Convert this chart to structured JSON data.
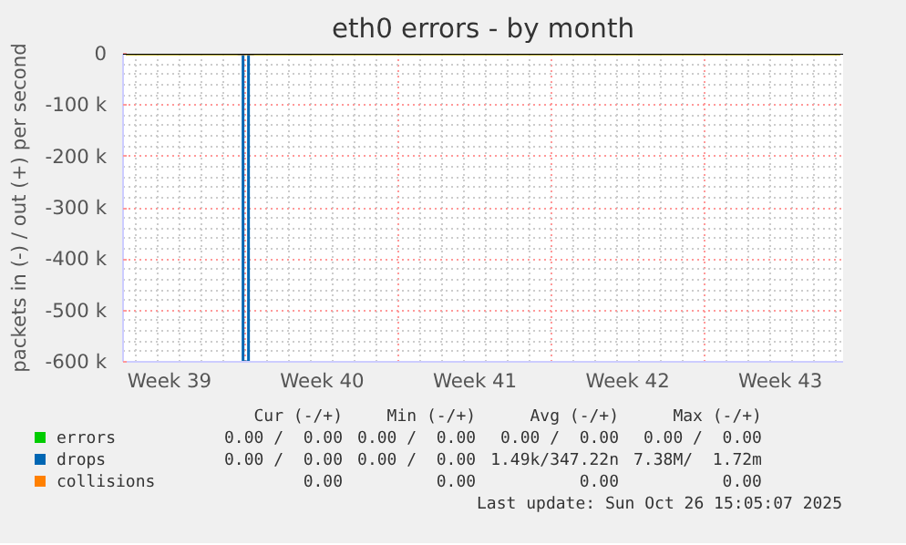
{
  "chart_data": {
    "type": "line",
    "title": "eth0 errors - by month",
    "ylabel": "packets in (-) / out (+) per second",
    "categories": [
      null,
      null,
      null,
      null,
      null,
      null,
      null,
      null,
      "Week 39",
      null,
      null,
      null,
      null,
      null,
      null,
      null,
      null,
      null,
      null,
      null,
      null,
      null,
      null,
      null,
      null,
      null,
      null,
      null,
      null,
      null,
      null,
      null,
      null,
      null,
      null,
      null,
      "Week 40",
      null,
      null,
      null,
      null,
      null,
      null,
      null,
      null,
      null,
      null,
      null,
      null,
      null,
      null,
      null,
      null,
      null,
      null,
      null,
      null,
      null,
      null,
      null,
      null,
      null,
      null,
      null,
      "Week 41",
      null,
      null,
      null,
      null,
      null,
      null,
      null,
      null,
      null,
      null,
      null,
      null,
      null,
      null,
      null,
      null,
      null,
      null,
      null,
      null,
      null,
      null,
      null,
      null,
      null,
      null,
      null,
      "Week 42",
      null,
      null,
      null,
      null,
      null,
      null,
      null,
      null,
      null,
      null,
      null,
      null,
      null,
      null,
      null,
      null,
      null,
      null,
      null,
      null,
      null,
      null,
      null,
      null,
      null,
      null,
      null,
      "Week 43",
      null,
      null,
      null,
      null,
      null,
      null,
      null,
      null,
      null,
      null,
      null
    ],
    "ylim": [
      -600000,
      0
    ],
    "yticks": [
      0,
      {
        "value": -100000,
        "label": "-100 k"
      },
      {
        "value": -200000,
        "label": "-200 k"
      },
      {
        "value": -300000,
        "label": "-300 k"
      },
      {
        "value": -400000,
        "label": "-400 k"
      },
      {
        "value": -500000,
        "label": "-500 k"
      },
      {
        "value": -600000,
        "label": "-600 k"
      }
    ],
    "grid": true,
    "legend": "bottom",
    "series": [
      {
        "name": "errors",
        "color": "#00cc00",
        "values": [
          null,
          null,
          null,
          null,
          null,
          null,
          null,
          null,
          null,
          null,
          null,
          null,
          null,
          null,
          null,
          null,
          null,
          null,
          null,
          null,
          null,
          null,
          null,
          null,
          null,
          null,
          null,
          null,
          null,
          null,
          null,
          null,
          null,
          null,
          null,
          null,
          null,
          null,
          null,
          null,
          null,
          null,
          null,
          null,
          null,
          null,
          null,
          null,
          null,
          null,
          null,
          null,
          null,
          null,
          null,
          null,
          null,
          null,
          null,
          null,
          null,
          null,
          null,
          null,
          null,
          null,
          null,
          null,
          null,
          null,
          null,
          null,
          null,
          null,
          null,
          null,
          null,
          null,
          null,
          null,
          null,
          null,
          null,
          null,
          null,
          null,
          null,
          null,
          null,
          null,
          null,
          null,
          null,
          null,
          null,
          null,
          null,
          null,
          null,
          null,
          null,
          null,
          null,
          null,
          null,
          null,
          null,
          null,
          null,
          null,
          null,
          null,
          null,
          null,
          null,
          null,
          null,
          null,
          null,
          null,
          null,
          null,
          null,
          null,
          null,
          null,
          null,
          null,
          null,
          null,
          null,
          null
        ]
      },
      {
        "name": "drops",
        "color": "#0066b3",
        "type": "step",
        "values": [
          null,
          null,
          null,
          null,
          null,
          null,
          null,
          null,
          null,
          null,
          null,
          null,
          null,
          null,
          null,
          null,
          null,
          null,
          null,
          null,
          null,
          0,
          -600000,
          0,
          null,
          null,
          null,
          null,
          null,
          null,
          null,
          null,
          null,
          null,
          null,
          null,
          null,
          null,
          null,
          null,
          null,
          null,
          null,
          null,
          null,
          null,
          null,
          null,
          null,
          null,
          null,
          null,
          null,
          null,
          null,
          null,
          null,
          null,
          null,
          null,
          null,
          null,
          null,
          null,
          null,
          null,
          null,
          null,
          null,
          null,
          null,
          null,
          null,
          null,
          null,
          null,
          null,
          null,
          null,
          null,
          null,
          null,
          null,
          null,
          null,
          null,
          null,
          null,
          null,
          null,
          null,
          null,
          null,
          null,
          null,
          null,
          null,
          null,
          null,
          null,
          null,
          null,
          null,
          null,
          null,
          null,
          null,
          null,
          null,
          null,
          null,
          null,
          null,
          null,
          null,
          null,
          null,
          null,
          null,
          null,
          null,
          null,
          null,
          null,
          null,
          null,
          null,
          null,
          null,
          null,
          null,
          null
        ]
      },
      {
        "name": "collisions",
        "color": "#ff8000",
        "values": [
          null,
          null,
          null,
          null,
          null,
          null,
          null,
          null,
          null,
          null,
          null,
          null,
          null,
          null,
          null,
          null,
          null,
          null,
          null,
          null,
          null,
          null,
          null,
          null,
          null,
          null,
          null,
          null,
          null,
          null,
          null,
          null,
          null,
          null,
          null,
          null,
          null,
          null,
          null,
          null,
          null,
          null,
          null,
          null,
          null,
          null,
          null,
          null,
          null,
          null,
          null,
          null,
          null,
          null,
          null,
          null,
          null,
          null,
          null,
          null,
          null,
          null,
          null,
          null,
          null,
          null,
          null,
          null,
          null,
          null,
          null,
          null,
          null,
          null,
          null,
          null,
          null,
          null,
          null,
          null,
          null,
          null,
          null,
          null,
          null,
          null,
          null,
          null,
          null,
          null,
          null,
          null,
          null,
          null,
          null,
          null,
          null,
          null,
          null,
          null,
          null,
          null,
          null,
          null,
          null,
          null,
          null,
          null,
          null,
          null,
          null,
          null,
          null,
          null,
          null,
          null,
          null,
          null,
          null,
          null,
          null,
          null,
          null,
          null,
          null,
          null,
          null,
          null,
          null,
          null,
          null,
          null
        ]
      }
    ],
    "ref_lines": [
      {
        "axis": "y",
        "value": 0,
        "color": "#000000"
      }
    ],
    "annotations": [
      "Cur (-/+)",
      "Min (-/+)",
      "Avg (-/+)",
      "Max (-/+)",
      "0.00 /  0.00",
      "0.00 /  0.00",
      "0.00 /  0.00",
      "0.00 /  0.00",
      "0.00 /  0.00",
      "0.00 /  0.00",
      "1.49k/347.22n",
      "7.38M/  1.72m",
      "0.00",
      "0.00",
      "0.00",
      "0.00",
      "Last update: Sun Oct 26 15:05:07 2025"
    ]
  }
}
